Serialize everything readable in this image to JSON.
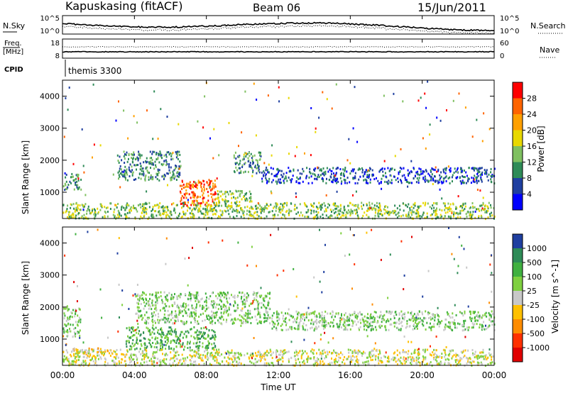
{
  "header": {
    "station": "Kapuskasing (fitACF)",
    "beam": "Beam 06",
    "date": "15/Jun/2011"
  },
  "status_panels": {
    "nsky_label": "N.Sky",
    "nsearch_label": "N.Search",
    "freq_label_1": "Freq.",
    "freq_label_2": "[MHz]",
    "nave_label": "Nave",
    "cpid_label": "CPID",
    "cpid_value": "themis 3300",
    "left_ticks_top": [
      "10^5",
      "10^0"
    ],
    "right_ticks_top": [
      "10^5",
      "10^0"
    ],
    "left_ticks_freq": [
      "18",
      "8"
    ],
    "right_ticks_freq": [
      "60",
      "0"
    ]
  },
  "axes": {
    "x_label": "Time UT",
    "x_ticks": [
      "00:00",
      "04:00",
      "08:00",
      "12:00",
      "16:00",
      "20:00",
      "00:00"
    ],
    "y_label": "Slant Range [km]",
    "y_ticks": [
      "1000",
      "2000",
      "3000",
      "4000"
    ]
  },
  "chart_data": [
    {
      "type": "heatmap",
      "title": "",
      "xlabel": "Time UT",
      "ylabel": "Slant Range [km]",
      "xlim": [
        0,
        24
      ],
      "ylim": [
        180,
        4500
      ],
      "colorbar_label": "Power [dB]",
      "colorbar_ticks": [
        "28",
        "24",
        "20",
        "16",
        "12",
        "8",
        "4"
      ],
      "colorbar_colors": [
        "#ff0000",
        "#ff6400",
        "#ffa000",
        "#e8d800",
        "#7fc060",
        "#2e8b57",
        "#1f3fa0",
        "#0000ff"
      ],
      "scatter_regions": [
        {
          "time": [
            0,
            1.0
          ],
          "range": [
            1100,
            1600
          ],
          "value": "8"
        },
        {
          "time": [
            3.0,
            6.5
          ],
          "range": [
            1400,
            2300
          ],
          "value": "8"
        },
        {
          "time": [
            6.5,
            8.5
          ],
          "range": [
            600,
            1400
          ],
          "value": "24"
        },
        {
          "time": [
            8.5,
            10.5
          ],
          "range": [
            700,
            1100
          ],
          "value": "12"
        },
        {
          "time": [
            9.5,
            11.0
          ],
          "range": [
            1600,
            2300
          ],
          "value": "8"
        },
        {
          "time": [
            11.0,
            24.0
          ],
          "range": [
            1300,
            1800
          ],
          "value": "4"
        },
        {
          "time": [
            0,
            24.0
          ],
          "range": [
            200,
            700
          ],
          "value": "12"
        }
      ]
    },
    {
      "type": "heatmap",
      "title": "",
      "xlabel": "Time UT",
      "ylabel": "Slant Range [km]",
      "xlim": [
        0,
        24
      ],
      "ylim": [
        180,
        4500
      ],
      "colorbar_label": "Velocity [m s^-1]",
      "colorbar_ticks": [
        "1000",
        "500",
        "100",
        "25",
        "-25",
        "-100",
        "-500",
        "-1000"
      ],
      "colorbar_colors": [
        "#1f3fa0",
        "#2e8b57",
        "#40b040",
        "#7fd040",
        "#c8c8c8",
        "#ffc000",
        "#ff8c00",
        "#ff3000",
        "#e00000"
      ],
      "scatter_regions": [
        {
          "time": [
            0,
            1.0
          ],
          "range": [
            1100,
            2000
          ],
          "value": "25"
        },
        {
          "time": [
            0.5,
            2.5
          ],
          "range": [
            550,
            750
          ],
          "value": "-100"
        },
        {
          "time": [
            3.5,
            8.5
          ],
          "range": [
            700,
            1400
          ],
          "value": "100"
        },
        {
          "time": [
            4.0,
            11.5
          ],
          "range": [
            1500,
            2500
          ],
          "value": "25"
        },
        {
          "time": [
            11.5,
            24.0
          ],
          "range": [
            1300,
            1900
          ],
          "value": "25"
        },
        {
          "time": [
            0,
            24.0
          ],
          "range": [
            200,
            700
          ],
          "value": "-25"
        }
      ]
    }
  ]
}
